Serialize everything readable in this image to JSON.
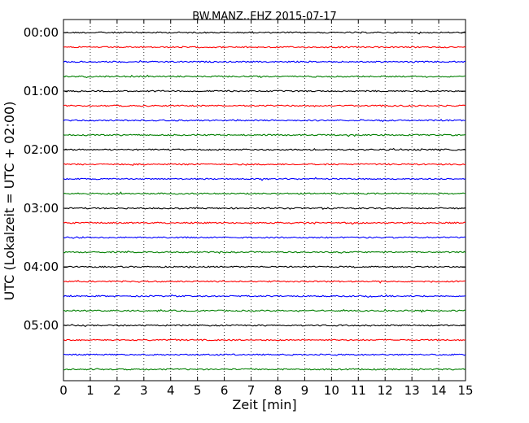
{
  "chart_data": {
    "type": "line",
    "title": "BW.MANZ..EHZ 2015-07-17",
    "xlabel": "Zeit  [min]",
    "ylabel": "UTC (Lokalzeit = UTC + 02:00)",
    "xlim": [
      0,
      15
    ],
    "x_ticks": [
      "0",
      "1",
      "2",
      "3",
      "4",
      "5",
      "6",
      "7",
      "8",
      "9",
      "10",
      "11",
      "12",
      "13",
      "14",
      "15"
    ],
    "y_tick_labels": [
      "00:00",
      "01:00",
      "02:00",
      "03:00",
      "04:00",
      "05:00"
    ],
    "vertical_grid": "dotted",
    "trace_colors": [
      "#000000",
      "#ff0000",
      "#0000ff",
      "#007f00"
    ],
    "trace_start_times": [
      "00:00",
      "00:15",
      "00:30",
      "00:45",
      "01:00",
      "01:15",
      "01:30",
      "01:45",
      "02:00",
      "02:15",
      "02:30",
      "02:45",
      "03:00",
      "03:15",
      "03:30",
      "03:45",
      "04:00",
      "04:15",
      "04:30",
      "04:45",
      "05:00",
      "05:15",
      "05:30",
      "05:45"
    ]
  }
}
